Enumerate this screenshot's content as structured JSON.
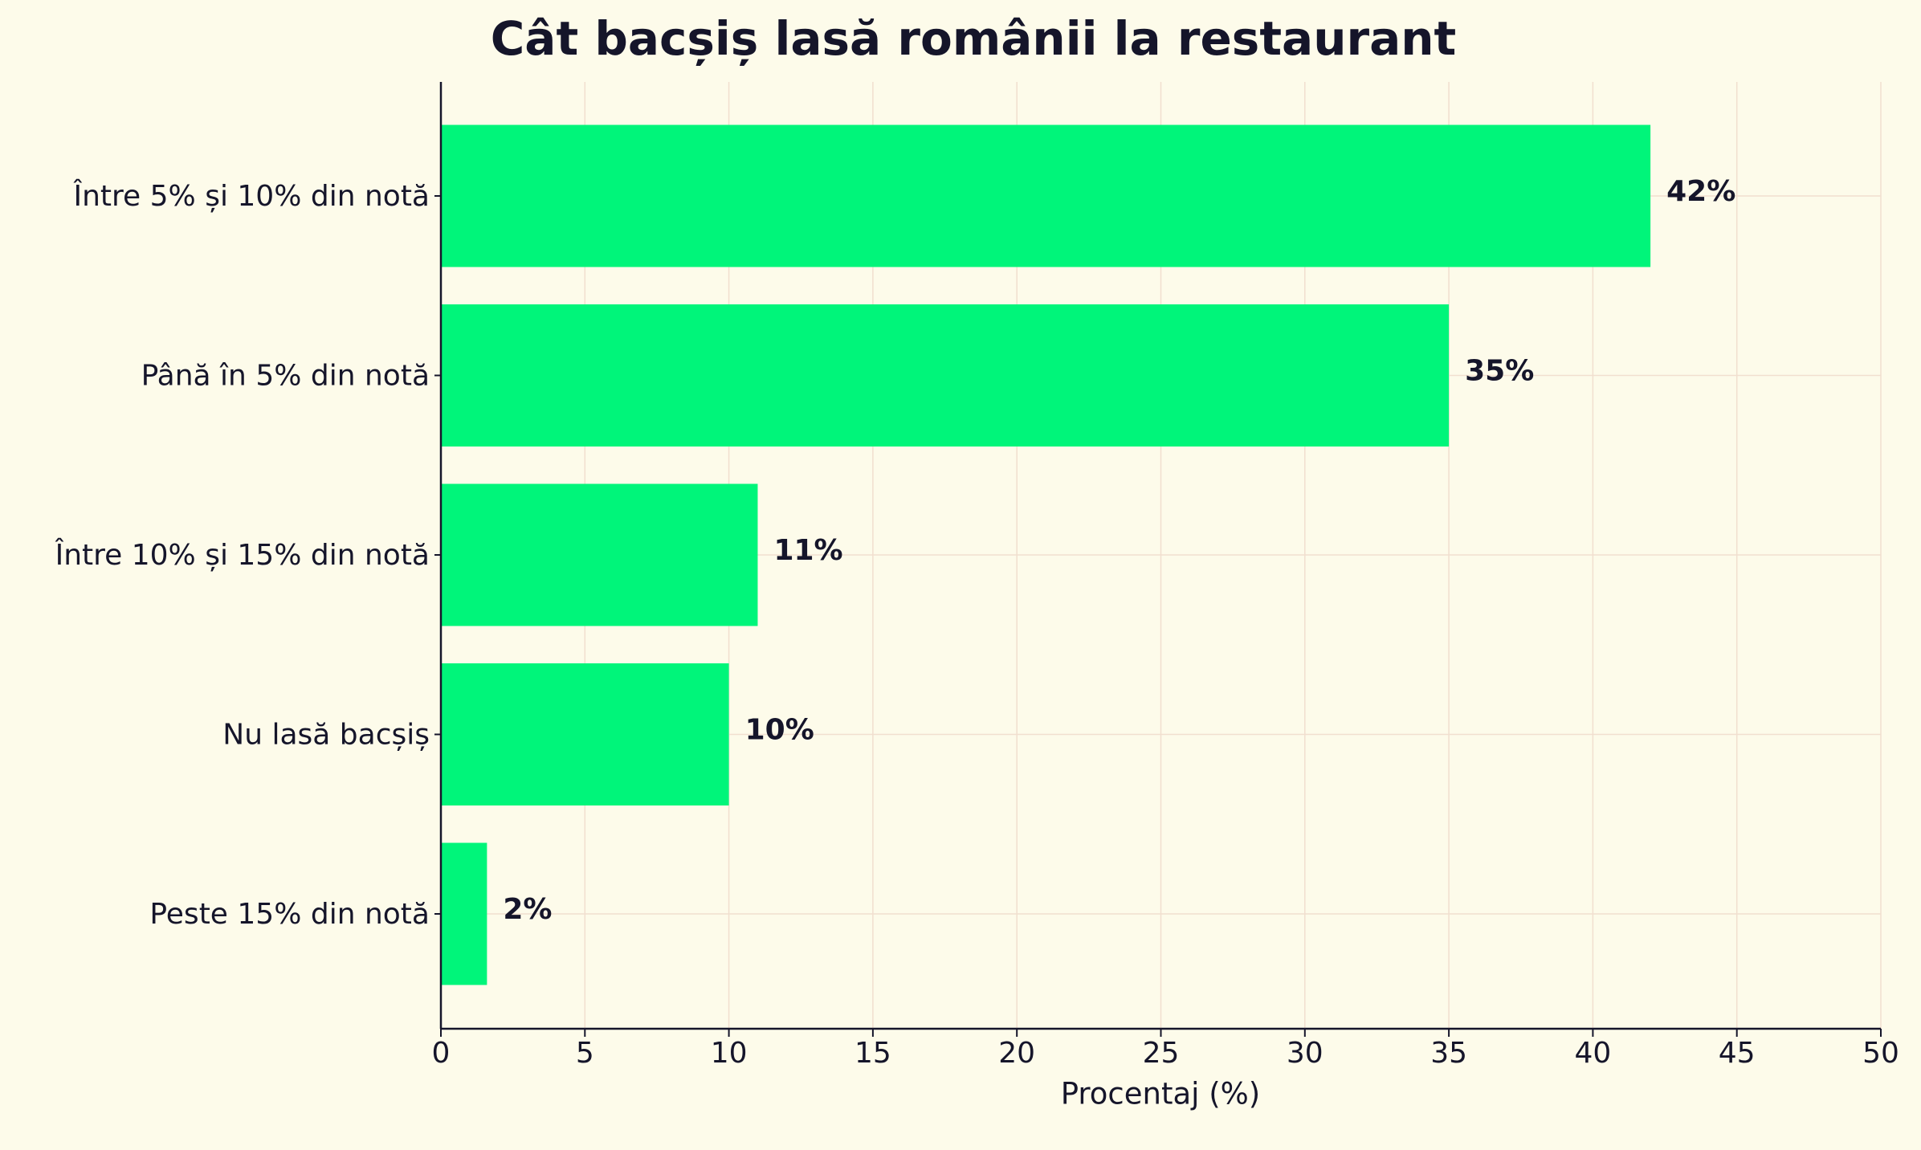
{
  "chart_data": {
    "type": "barh",
    "title": "Cât bacșiș lasă românii la restaurant",
    "categories": [
      "Între 5% și 10% din notă",
      "Până în 5% din notă",
      "Între 10% și 15% din notă",
      "Nu lasă bacșiș",
      "Peste 15% din notă"
    ],
    "values": [
      42,
      35,
      11,
      10,
      1.6
    ],
    "value_labels": [
      "42%",
      "35%",
      "11%",
      "10%",
      "2%"
    ],
    "color": "#00f57a",
    "xlabel": "Procentaj (%)",
    "xlim": [
      0,
      50
    ],
    "xticks": [
      0,
      5,
      10,
      15,
      20,
      25,
      30,
      35,
      40,
      45,
      50
    ],
    "grid": true
  }
}
